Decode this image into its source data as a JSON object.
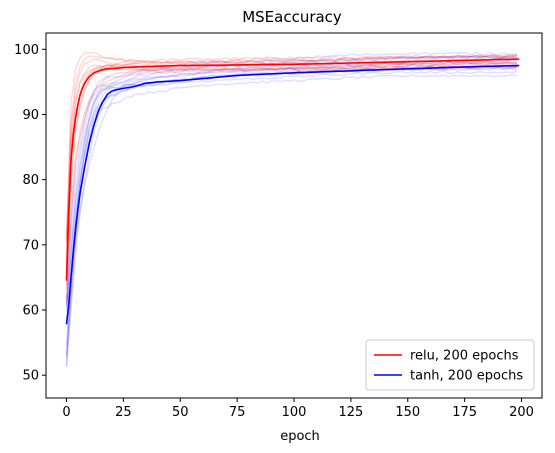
{
  "chart_data": {
    "type": "line",
    "title": "MSEaccuracy",
    "xlabel": "epoch",
    "ylabel": "",
    "xlim": [
      -9,
      209
    ],
    "ylim": [
      46.5,
      102.5
    ],
    "xticks": [
      0,
      25,
      50,
      75,
      100,
      125,
      150,
      175,
      200
    ],
    "yticks": [
      50,
      60,
      70,
      80,
      90,
      100
    ],
    "grid": false,
    "legend_position": "lower-right",
    "series": [
      {
        "name": "relu, 200 epochs",
        "color": "#ff0000",
        "x": [
          0,
          1,
          2,
          3,
          4,
          5,
          6,
          7,
          8,
          10,
          12,
          15,
          18,
          22,
          25,
          30,
          40,
          50,
          75,
          100,
          125,
          150,
          175,
          199
        ],
        "values": [
          64.5,
          75,
          83,
          87,
          89.5,
          91.5,
          93,
          94,
          94.8,
          95.8,
          96.4,
          96.8,
          97,
          97.1,
          97.2,
          97.3,
          97.4,
          97.5,
          97.6,
          97.7,
          97.9,
          98.1,
          98.3,
          98.5
        ]
      },
      {
        "name": "tanh, 200 epochs",
        "color": "#0000ff",
        "x": [
          0,
          1,
          2,
          3,
          4,
          5,
          6,
          8,
          10,
          12,
          14,
          16,
          18,
          20,
          22,
          25,
          30,
          35,
          40,
          50,
          60,
          75,
          100,
          125,
          150,
          175,
          199
        ],
        "values": [
          57.8,
          61,
          65,
          69,
          72.5,
          75.5,
          78,
          82,
          85.5,
          88.3,
          90.5,
          92,
          93.1,
          93.6,
          93.8,
          94,
          94.3,
          94.8,
          95,
          95.2,
          95.5,
          96,
          96.4,
          96.7,
          97,
          97.3,
          97.5
        ]
      }
    ]
  }
}
